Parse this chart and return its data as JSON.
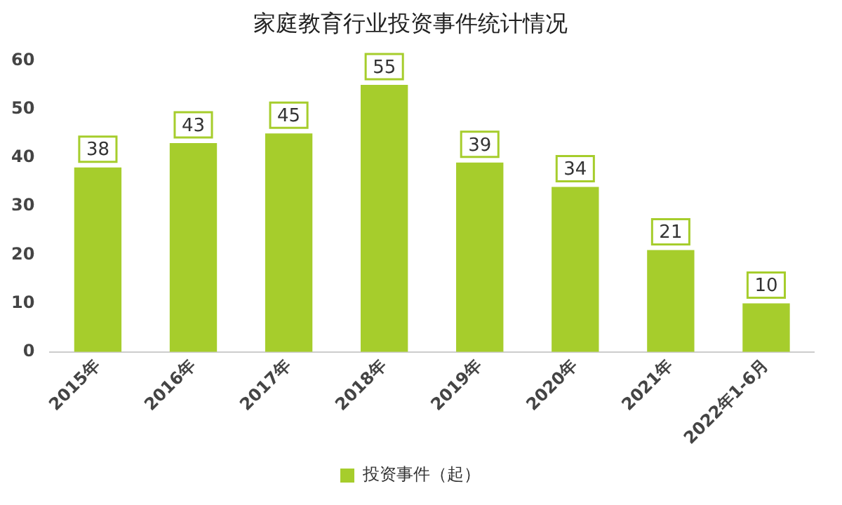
{
  "chart_data": {
    "type": "bar",
    "title": "家庭教育行业投资事件统计情况",
    "categories": [
      "2015年",
      "2016年",
      "2017年",
      "2018年",
      "2019年",
      "2020年",
      "2021年",
      "2022年1-6月"
    ],
    "series": [
      {
        "name": "投资事件（起）",
        "color": "#a6cd2c",
        "values": [
          38,
          43,
          45,
          55,
          39,
          34,
          21,
          10
        ]
      }
    ],
    "ylim": [
      0,
      60
    ],
    "yticks": [
      0,
      10,
      20,
      30,
      40,
      50,
      60
    ],
    "grid": false,
    "legend": "bottom",
    "data_labels": true
  }
}
